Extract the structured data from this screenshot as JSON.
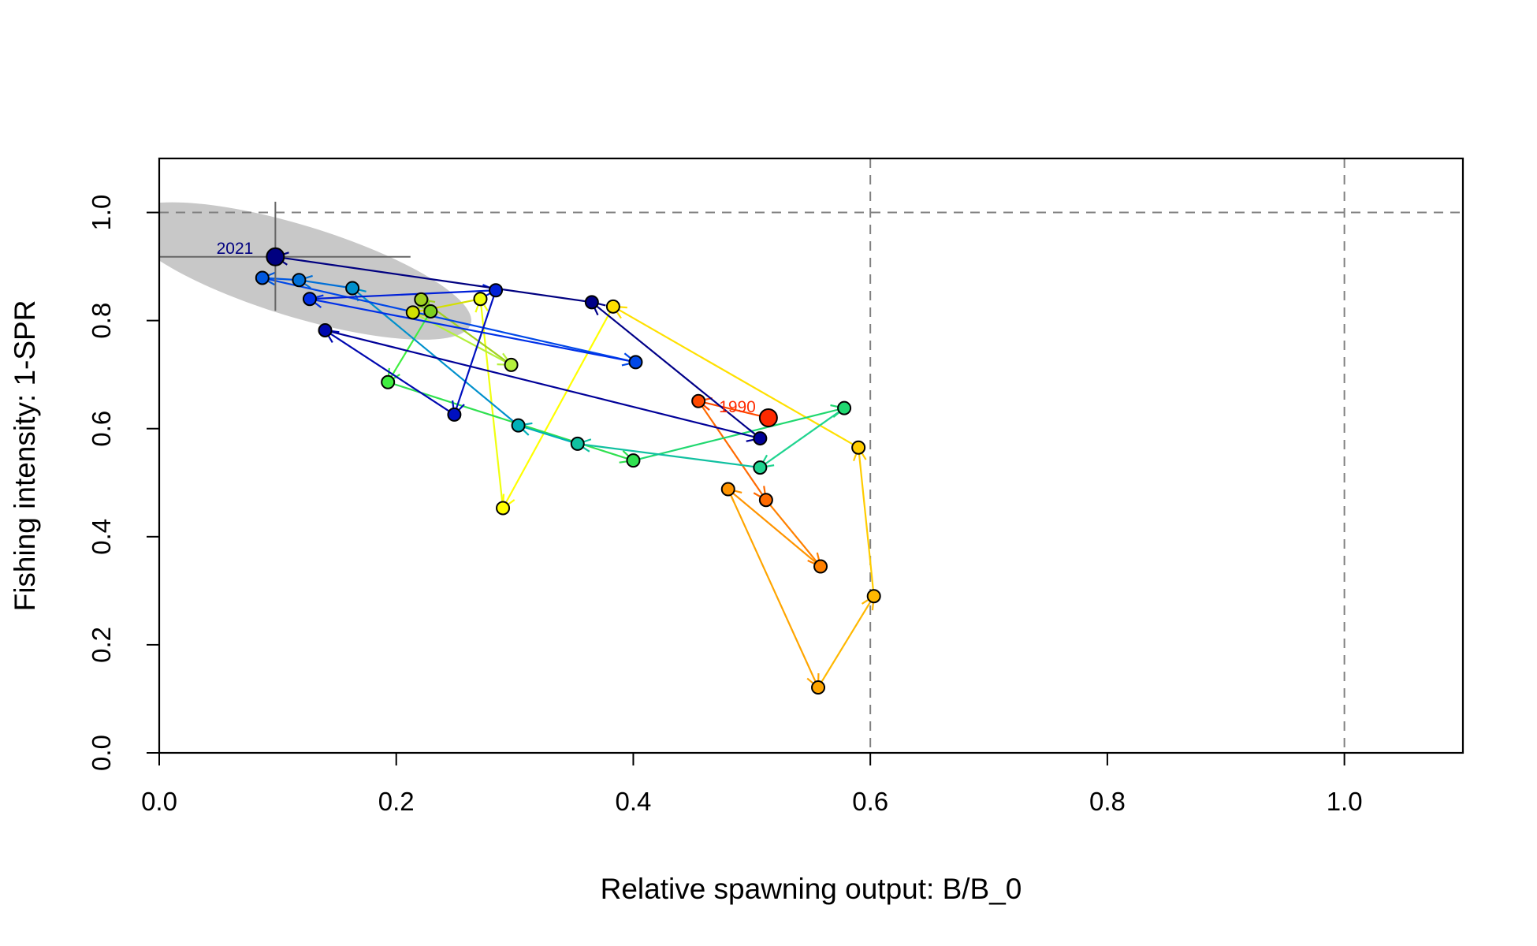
{
  "chart_data": {
    "type": "scatter",
    "title": "",
    "xlabel": "Relative spawning output: B/B_0",
    "ylabel": "Fishing intensity: 1-SPR",
    "xlim": [
      0.0,
      1.1
    ],
    "ylim": [
      0.0,
      1.1
    ],
    "x_ticks": [
      0.0,
      0.2,
      0.4,
      0.6,
      0.8,
      1.0
    ],
    "x_tick_labels": [
      "0.0",
      "0.2",
      "0.4",
      "0.6",
      "0.8",
      "1.0"
    ],
    "y_ticks": [
      0.0,
      0.2,
      0.4,
      0.6,
      0.8,
      1.0
    ],
    "y_tick_labels": [
      "0.0",
      "0.2",
      "0.4",
      "0.6",
      "0.8",
      "1.0"
    ],
    "grid": false,
    "reference_lines": {
      "vertical": [
        0.6,
        1.0
      ],
      "horizontal": [
        1.0
      ]
    },
    "start_label": "1990",
    "end_label": "2021",
    "end_point": {
      "x": 0.098,
      "y": 0.918,
      "x_interval": [
        0.0,
        0.212
      ],
      "y_interval": [
        0.818,
        1.02
      ]
    },
    "uncertainty_color": "#c8c8c8",
    "colors": {
      "start": "#ff2a00",
      "end": "#000080",
      "reference_line": "#808080",
      "end_label": "#000080",
      "start_label": "#ff2a00"
    },
    "trajectory": [
      {
        "x": 0.514,
        "y": 0.62,
        "color": "#ff2a00"
      },
      {
        "x": 0.455,
        "y": 0.651,
        "color": "#ff4a00"
      },
      {
        "x": 0.512,
        "y": 0.468,
        "color": "#ff6a00"
      },
      {
        "x": 0.558,
        "y": 0.345,
        "color": "#ff8000"
      },
      {
        "x": 0.48,
        "y": 0.488,
        "color": "#ff9400"
      },
      {
        "x": 0.556,
        "y": 0.121,
        "color": "#ffa500"
      },
      {
        "x": 0.603,
        "y": 0.29,
        "color": "#ffb800"
      },
      {
        "x": 0.59,
        "y": 0.565,
        "color": "#ffcc00"
      },
      {
        "x": 0.383,
        "y": 0.826,
        "color": "#ffe000"
      },
      {
        "x": 0.29,
        "y": 0.453,
        "color": "#ffff00"
      },
      {
        "x": 0.271,
        "y": 0.84,
        "color": "#f0ff10"
      },
      {
        "x": 0.214,
        "y": 0.815,
        "color": "#d4e000"
      },
      {
        "x": 0.297,
        "y": 0.718,
        "color": "#b4f03c"
      },
      {
        "x": 0.221,
        "y": 0.839,
        "color": "#a0d020"
      },
      {
        "x": 0.229,
        "y": 0.817,
        "color": "#7ccf1e"
      },
      {
        "x": 0.193,
        "y": 0.686,
        "color": "#40ee40"
      },
      {
        "x": 0.4,
        "y": 0.541,
        "color": "#30e050"
      },
      {
        "x": 0.578,
        "y": 0.638,
        "color": "#20d870"
      },
      {
        "x": 0.507,
        "y": 0.528,
        "color": "#20d490"
      },
      {
        "x": 0.353,
        "y": 0.572,
        "color": "#10c0a0"
      },
      {
        "x": 0.303,
        "y": 0.606,
        "color": "#00b0b8"
      },
      {
        "x": 0.163,
        "y": 0.86,
        "color": "#0090cc"
      },
      {
        "x": 0.118,
        "y": 0.875,
        "color": "#0070d8"
      },
      {
        "x": 0.087,
        "y": 0.879,
        "color": "#0058e0"
      },
      {
        "x": 0.402,
        "y": 0.723,
        "color": "#0048e8"
      },
      {
        "x": 0.127,
        "y": 0.84,
        "color": "#0030e8"
      },
      {
        "x": 0.284,
        "y": 0.856,
        "color": "#0020d8"
      },
      {
        "x": 0.249,
        "y": 0.626,
        "color": "#0010c0"
      },
      {
        "x": 0.14,
        "y": 0.782,
        "color": "#0008b0"
      },
      {
        "x": 0.507,
        "y": 0.582,
        "color": "#000098"
      },
      {
        "x": 0.365,
        "y": 0.834,
        "color": "#000088"
      },
      {
        "x": 0.098,
        "y": 0.918,
        "color": "#000080"
      }
    ]
  }
}
